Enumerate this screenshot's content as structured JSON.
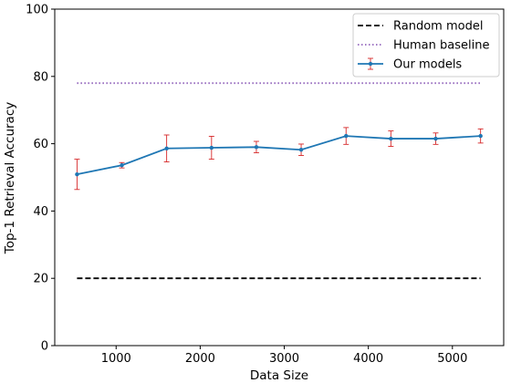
{
  "chart_data": {
    "type": "line",
    "title": "",
    "xlabel": "Data Size",
    "ylabel": "Top-1 Retrieval Accuracy",
    "xlim": [
      270,
      5610
    ],
    "ylim": [
      0,
      100
    ],
    "x_ticks": [
      1000,
      2000,
      3000,
      4000,
      5000
    ],
    "y_ticks": [
      0,
      20,
      40,
      60,
      80,
      100
    ],
    "grid": false,
    "legend_position": "upper right",
    "series": [
      {
        "name": "Random model",
        "kind": "hline",
        "style": "dashed",
        "color": "#000000",
        "y": 20,
        "x_range": [
          535,
          5335
        ]
      },
      {
        "name": "Human baseline",
        "kind": "hline",
        "style": "dotted",
        "color": "#9467bd",
        "y": 78,
        "x_range": [
          535,
          5335
        ]
      },
      {
        "name": "Our models",
        "kind": "line-errorbar",
        "style": "solid",
        "color": "#1f77b4",
        "error_color": "#d62728",
        "x": [
          535,
          1068,
          1601,
          2135,
          2668,
          3201,
          3735,
          4268,
          4801,
          5335
        ],
        "y": [
          50.9,
          53.6,
          58.6,
          58.8,
          59.0,
          58.2,
          62.3,
          61.5,
          61.5,
          62.3
        ],
        "yerr": [
          4.5,
          0.8,
          4.0,
          3.4,
          1.7,
          1.7,
          2.5,
          2.3,
          1.7,
          2.1
        ]
      }
    ]
  }
}
